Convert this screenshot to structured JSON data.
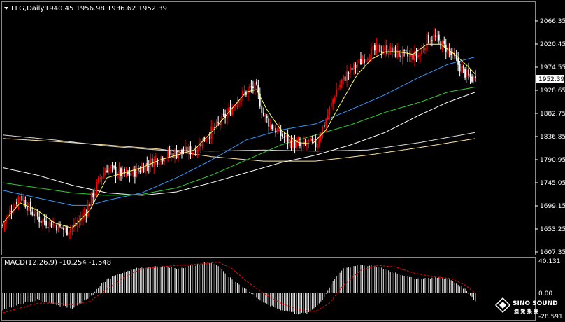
{
  "header": {
    "symbol": "LLG,Daily",
    "ohlc": "1940.45 1956.98 1936.62 1952.39"
  },
  "current_price_label": "1952.39",
  "macd": {
    "label": "MACD(12,26,9) -10.254 -1.548",
    "ticks": [
      "40.131",
      "0.00",
      "-28.591"
    ]
  },
  "logo": {
    "line1": "SINO SOUND",
    "line2": "澳 覽 集 團"
  },
  "colors": {
    "up_candle": "#ff0000",
    "down_candle": "#ffffff",
    "ma_fast": "#ffff66",
    "ma_mid": "#3399ff",
    "ma_slow": "#33cc33",
    "ma_long1": "#ffffff",
    "ma_long2": "#ffe4a0",
    "macd_hist": "#ffffff",
    "macd_signal": "#ff0000"
  },
  "chart_data": [
    {
      "type": "candlestick",
      "y_ticks": [
        "2066.35",
        "2020.45",
        "1974.55",
        "1928.65",
        "1882.75",
        "1836.85",
        "1790.95",
        "1745.05",
        "1699.15",
        "1653.25",
        "1607.35"
      ],
      "ylim": [
        1600,
        2090
      ],
      "grid": false,
      "anchors": [
        [
          0,
          1660
        ],
        [
          6,
          1700
        ],
        [
          10,
          1720
        ],
        [
          16,
          1690
        ],
        [
          22,
          1670
        ],
        [
          28,
          1665
        ],
        [
          36,
          1650
        ],
        [
          42,
          1660
        ],
        [
          48,
          1690
        ],
        [
          56,
          1755
        ],
        [
          60,
          1775
        ],
        [
          66,
          1765
        ],
        [
          72,
          1760
        ],
        [
          78,
          1770
        ],
        [
          84,
          1785
        ],
        [
          94,
          1800
        ],
        [
          102,
          1805
        ],
        [
          110,
          1810
        ],
        [
          118,
          1840
        ],
        [
          124,
          1860
        ],
        [
          132,
          1895
        ],
        [
          136,
          1915
        ],
        [
          140,
          1925
        ],
        [
          144,
          1935
        ],
        [
          146,
          1930
        ],
        [
          150,
          1880
        ],
        [
          154,
          1860
        ],
        [
          160,
          1840
        ],
        [
          166,
          1825
        ],
        [
          172,
          1815
        ],
        [
          176,
          1825
        ],
        [
          180,
          1820
        ],
        [
          186,
          1870
        ],
        [
          192,
          1930
        ],
        [
          198,
          1960
        ],
        [
          204,
          1980
        ],
        [
          210,
          2000
        ],
        [
          216,
          2010
        ],
        [
          222,
          2010
        ],
        [
          228,
          2000
        ],
        [
          234,
          1995
        ],
        [
          240,
          2000
        ],
        [
          244,
          2030
        ],
        [
          248,
          2035
        ],
        [
          252,
          2020
        ],
        [
          256,
          2010
        ],
        [
          260,
          1990
        ],
        [
          264,
          1970
        ],
        [
          268,
          1955
        ],
        [
          272,
          1950
        ]
      ],
      "ma_fast_anchors": [
        [
          0,
          1665
        ],
        [
          10,
          1705
        ],
        [
          20,
          1690
        ],
        [
          30,
          1665
        ],
        [
          40,
          1655
        ],
        [
          50,
          1690
        ],
        [
          60,
          1755
        ],
        [
          70,
          1765
        ],
        [
          80,
          1775
        ],
        [
          90,
          1790
        ],
        [
          100,
          1800
        ],
        [
          110,
          1810
        ],
        [
          120,
          1845
        ],
        [
          130,
          1885
        ],
        [
          140,
          1925
        ],
        [
          146,
          1930
        ],
        [
          152,
          1890
        ],
        [
          160,
          1850
        ],
        [
          170,
          1825
        ],
        [
          178,
          1822
        ],
        [
          186,
          1850
        ],
        [
          194,
          1900
        ],
        [
          204,
          1960
        ],
        [
          212,
          1990
        ],
        [
          220,
          2005
        ],
        [
          228,
          2005
        ],
        [
          236,
          2000
        ],
        [
          244,
          2020
        ],
        [
          252,
          2020
        ],
        [
          260,
          2000
        ],
        [
          268,
          1975
        ],
        [
          272,
          1960
        ]
      ],
      "ma_mid_anchors": [
        [
          0,
          1730
        ],
        [
          20,
          1715
        ],
        [
          40,
          1700
        ],
        [
          50,
          1700
        ],
        [
          60,
          1710
        ],
        [
          80,
          1725
        ],
        [
          100,
          1755
        ],
        [
          120,
          1790
        ],
        [
          140,
          1830
        ],
        [
          160,
          1850
        ],
        [
          180,
          1862
        ],
        [
          200,
          1890
        ],
        [
          220,
          1920
        ],
        [
          240,
          1955
        ],
        [
          256,
          1980
        ],
        [
          272,
          1995
        ]
      ],
      "ma_slow_anchors": [
        [
          0,
          1745
        ],
        [
          20,
          1735
        ],
        [
          40,
          1725
        ],
        [
          60,
          1720
        ],
        [
          80,
          1722
        ],
        [
          100,
          1735
        ],
        [
          120,
          1760
        ],
        [
          140,
          1790
        ],
        [
          160,
          1820
        ],
        [
          180,
          1840
        ],
        [
          200,
          1860
        ],
        [
          220,
          1885
        ],
        [
          240,
          1905
        ],
        [
          256,
          1925
        ],
        [
          272,
          1935
        ]
      ],
      "ma_long1_anchors": [
        [
          0,
          1775
        ],
        [
          20,
          1760
        ],
        [
          40,
          1740
        ],
        [
          60,
          1725
        ],
        [
          80,
          1720
        ],
        [
          100,
          1727
        ],
        [
          120,
          1745
        ],
        [
          140,
          1765
        ],
        [
          160,
          1785
        ],
        [
          180,
          1800
        ],
        [
          200,
          1820
        ],
        [
          220,
          1845
        ],
        [
          240,
          1880
        ],
        [
          256,
          1905
        ],
        [
          272,
          1925
        ]
      ],
      "ma_long2_anchors": [
        [
          0,
          1840
        ],
        [
          30,
          1830
        ],
        [
          60,
          1818
        ],
        [
          90,
          1810
        ],
        [
          120,
          1808
        ],
        [
          150,
          1810
        ],
        [
          180,
          1808
        ],
        [
          210,
          1810
        ],
        [
          240,
          1825
        ],
        [
          272,
          1845
        ]
      ],
      "ma_long3_anchors": [
        [
          0,
          1833
        ],
        [
          30,
          1827
        ],
        [
          60,
          1820
        ],
        [
          90,
          1812
        ],
        [
          120,
          1797
        ],
        [
          150,
          1788
        ],
        [
          180,
          1788
        ],
        [
          210,
          1800
        ],
        [
          240,
          1815
        ],
        [
          272,
          1833
        ]
      ]
    },
    {
      "type": "macd",
      "ylim": [
        -28.591,
        40.131
      ],
      "hist_anchors": [
        [
          0,
          -20
        ],
        [
          12,
          -12
        ],
        [
          20,
          -8
        ],
        [
          30,
          -14
        ],
        [
          40,
          -18
        ],
        [
          50,
          -6
        ],
        [
          56,
          10
        ],
        [
          64,
          22
        ],
        [
          76,
          30
        ],
        [
          90,
          33
        ],
        [
          100,
          30
        ],
        [
          110,
          34
        ],
        [
          118,
          38
        ],
        [
          124,
          34
        ],
        [
          130,
          20
        ],
        [
          140,
          5
        ],
        [
          150,
          -12
        ],
        [
          160,
          -20
        ],
        [
          170,
          -25
        ],
        [
          176,
          -24
        ],
        [
          184,
          -8
        ],
        [
          190,
          15
        ],
        [
          196,
          30
        ],
        [
          206,
          35
        ],
        [
          216,
          32
        ],
        [
          226,
          25
        ],
        [
          236,
          18
        ],
        [
          244,
          18
        ],
        [
          252,
          20
        ],
        [
          258,
          16
        ],
        [
          266,
          5
        ],
        [
          272,
          -10
        ]
      ],
      "signal_anchors": [
        [
          0,
          -24
        ],
        [
          10,
          -18
        ],
        [
          20,
          -12
        ],
        [
          30,
          -12
        ],
        [
          40,
          -14
        ],
        [
          50,
          -10
        ],
        [
          60,
          5
        ],
        [
          70,
          20
        ],
        [
          80,
          30
        ],
        [
          100,
          34
        ],
        [
          116,
          36
        ],
        [
          124,
          38
        ],
        [
          132,
          30
        ],
        [
          140,
          15
        ],
        [
          150,
          0
        ],
        [
          160,
          -12
        ],
        [
          170,
          -20
        ],
        [
          180,
          -22
        ],
        [
          188,
          -12
        ],
        [
          196,
          10
        ],
        [
          206,
          28
        ],
        [
          216,
          34
        ],
        [
          226,
          32
        ],
        [
          236,
          25
        ],
        [
          248,
          20
        ],
        [
          258,
          18
        ],
        [
          266,
          10
        ],
        [
          272,
          0
        ]
      ]
    }
  ]
}
